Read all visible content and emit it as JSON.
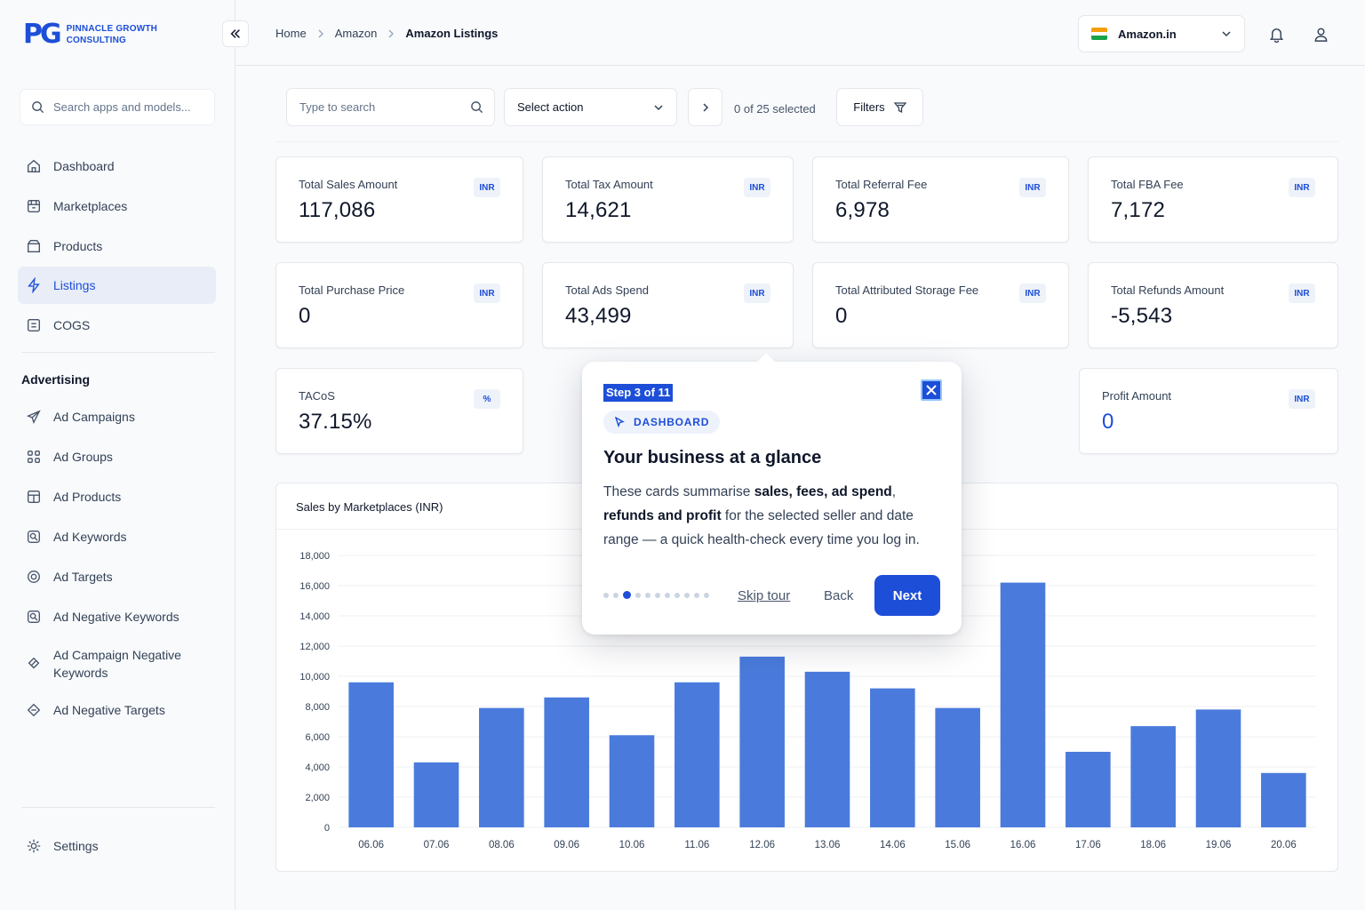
{
  "brand": {
    "mark": "PG",
    "name_line1": "PINNACLE GROWTH",
    "name_line2": "CONSULTING"
  },
  "sidebar": {
    "search_placeholder": "Search apps and models...",
    "items": [
      {
        "label": "Dashboard",
        "icon": "home-icon"
      },
      {
        "label": "Marketplaces",
        "icon": "store-icon"
      },
      {
        "label": "Products",
        "icon": "box-icon"
      },
      {
        "label": "Listings",
        "icon": "lightning-icon",
        "active": true
      },
      {
        "label": "COGS",
        "icon": "receipt-icon"
      }
    ],
    "advertising_title": "Advertising",
    "ad_items": [
      {
        "label": "Ad Campaigns",
        "icon": "megaphone-icon"
      },
      {
        "label": "Ad Groups",
        "icon": "grid-icon"
      },
      {
        "label": "Ad Products",
        "icon": "product-icon"
      },
      {
        "label": "Ad Keywords",
        "icon": "keyword-search-icon"
      },
      {
        "label": "Ad Targets",
        "icon": "target-icon"
      },
      {
        "label": "Ad Negative Keywords",
        "icon": "negative-keyword-icon"
      },
      {
        "label": "Ad Campaign Negative Keywords",
        "icon": "campaign-negative-icon"
      },
      {
        "label": "Ad Negative Targets",
        "icon": "negative-target-icon"
      }
    ],
    "settings_label": "Settings"
  },
  "header": {
    "breadcrumb": [
      "Home",
      "Amazon",
      "Amazon Listings"
    ],
    "marketplace": "Amazon.in"
  },
  "toolbar": {
    "search_placeholder": "Type to search",
    "action_select": "Select action",
    "selection_count": "0 of 25 selected",
    "filters_label": "Filters"
  },
  "cards": [
    {
      "title": "Total Sales Amount",
      "value": "117,086",
      "badge": "INR"
    },
    {
      "title": "Total Tax Amount",
      "value": "14,621",
      "badge": "INR"
    },
    {
      "title": "Total Referral Fee",
      "value": "6,978",
      "badge": "INR"
    },
    {
      "title": "Total FBA Fee",
      "value": "7,172",
      "badge": "INR"
    },
    {
      "title": "Total Purchase Price",
      "value": "0",
      "badge": "INR"
    },
    {
      "title": "Total Ads Spend",
      "value": "43,499",
      "badge": "INR"
    },
    {
      "title": "Total Attributed Storage Fee",
      "value": "0",
      "badge": "INR"
    },
    {
      "title": "Total Refunds Amount",
      "value": "-5,543",
      "badge": "INR"
    },
    {
      "title": "TACoS",
      "value": "37.15%",
      "badge": "%"
    },
    {
      "title": "Profit Amount",
      "value": "0",
      "badge": "INR"
    }
  ],
  "chart_data": {
    "type": "bar",
    "title": "Sales by Marketplaces (INR)",
    "categories": [
      "06.06",
      "07.06",
      "08.06",
      "09.06",
      "10.06",
      "11.06",
      "12.06",
      "13.06",
      "14.06",
      "15.06",
      "16.06",
      "17.06",
      "18.06",
      "19.06",
      "20.06"
    ],
    "values": [
      9600,
      4300,
      7900,
      8600,
      6100,
      9600,
      11300,
      10300,
      9200,
      7900,
      16200,
      5000,
      6700,
      7800,
      3600
    ],
    "ylim": [
      0,
      18000
    ],
    "yticks": [
      "0",
      "2,000",
      "4,000",
      "6,000",
      "8,000",
      "10,000",
      "12,000",
      "14,000",
      "16,000",
      "18,000"
    ],
    "color": "#4a7bdc",
    "grid": true
  },
  "tour": {
    "step": "Step 3 of 11",
    "tag": "DASHBOARD",
    "heading": "Your business at a glance",
    "body_1": "These cards summarise ",
    "body_b1": "sales, fees, ad spend",
    "body_2": ", ",
    "body_b2": "refunds and profit",
    "body_3": " for the selected seller and date range — a quick health-check every time you log in.",
    "total_steps": 11,
    "current_step": 3,
    "skip_label": "Skip tour",
    "back_label": "Back",
    "next_label": "Next"
  },
  "colors": {
    "accent": "#1d4ed8",
    "bar": "#4a7bdc"
  }
}
